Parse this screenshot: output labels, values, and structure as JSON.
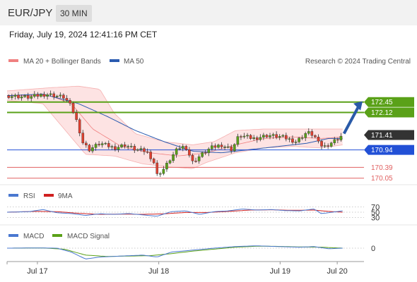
{
  "header": {
    "symbol": "EUR/JPY",
    "interval": "30 MIN",
    "datetime": "Friday, July 19, 2024 12:41:16 PM CET",
    "credit": "Research © 2024 Trading Central"
  },
  "colors": {
    "bollinger": "#f08080",
    "bollinger_fill": "#fde3e3",
    "ma50": "#2a5bb0",
    "resistance": "#5aa118",
    "support": "#2250d6",
    "pivot_red": "#e06060",
    "last_price": "#333333",
    "arrow": "#2a5aa8",
    "candle_up": "#5aa118",
    "candle_down": "#e04030",
    "rsi": "#4a78d0",
    "rsi_ma": "#d02020",
    "macd": "#4a78d0",
    "macd_signal": "#5aa118"
  },
  "chart_data": [
    {
      "type": "candlestick",
      "legend": [
        {
          "name": "MA 20 + Bollinger Bands",
          "color": "#f08080"
        },
        {
          "name": "MA 50",
          "color": "#2a5bb0"
        }
      ],
      "x_tick_labels": [
        "Jul 17",
        "Jul 18",
        "Jul 19",
        "Jul 20"
      ],
      "levels": [
        {
          "value": 172.45,
          "label": "172.45",
          "kind": "resistance"
        },
        {
          "value": 172.12,
          "label": "172.12",
          "kind": "resistance"
        },
        {
          "value": 171.41,
          "label": "171.41",
          "kind": "last"
        },
        {
          "value": 170.94,
          "label": "170.94",
          "kind": "support"
        },
        {
          "value": 170.39,
          "label": "170.39",
          "kind": "pivot"
        },
        {
          "value": 170.05,
          "label": "170.05",
          "kind": "pivot"
        }
      ],
      "price_path": [
        {
          "t": 0.0,
          "v": 172.65
        },
        {
          "t": 0.06,
          "v": 172.6
        },
        {
          "t": 0.11,
          "v": 172.7
        },
        {
          "t": 0.16,
          "v": 172.6
        },
        {
          "t": 0.18,
          "v": 172.3
        },
        {
          "t": 0.2,
          "v": 171.7
        },
        {
          "t": 0.21,
          "v": 171.2
        },
        {
          "t": 0.23,
          "v": 170.95
        },
        {
          "t": 0.26,
          "v": 171.15
        },
        {
          "t": 0.3,
          "v": 171.0
        },
        {
          "t": 0.33,
          "v": 171.1
        },
        {
          "t": 0.36,
          "v": 170.95
        },
        {
          "t": 0.39,
          "v": 170.9
        },
        {
          "t": 0.41,
          "v": 170.6
        },
        {
          "t": 0.42,
          "v": 170.15
        },
        {
          "t": 0.44,
          "v": 170.35
        },
        {
          "t": 0.46,
          "v": 170.7
        },
        {
          "t": 0.48,
          "v": 171.0
        },
        {
          "t": 0.5,
          "v": 171.05
        },
        {
          "t": 0.52,
          "v": 170.55
        },
        {
          "t": 0.54,
          "v": 170.75
        },
        {
          "t": 0.57,
          "v": 171.0
        },
        {
          "t": 0.6,
          "v": 171.1
        },
        {
          "t": 0.63,
          "v": 170.95
        },
        {
          "t": 0.65,
          "v": 171.4
        },
        {
          "t": 0.69,
          "v": 171.3
        },
        {
          "t": 0.73,
          "v": 171.4
        },
        {
          "t": 0.77,
          "v": 171.35
        },
        {
          "t": 0.81,
          "v": 171.2
        },
        {
          "t": 0.84,
          "v": 171.5
        },
        {
          "t": 0.86,
          "v": 171.4
        },
        {
          "t": 0.875,
          "v": 171.1
        },
        {
          "t": 0.89,
          "v": 171.05
        },
        {
          "t": 0.92,
          "v": 171.25
        },
        {
          "t": 0.94,
          "v": 171.41
        }
      ],
      "ma50_path": [
        {
          "t": 0.0,
          "v": 172.65
        },
        {
          "t": 0.1,
          "v": 172.7
        },
        {
          "t": 0.2,
          "v": 172.4
        },
        {
          "t": 0.28,
          "v": 172.0
        },
        {
          "t": 0.36,
          "v": 171.55
        },
        {
          "t": 0.44,
          "v": 171.2
        },
        {
          "t": 0.52,
          "v": 170.9
        },
        {
          "t": 0.6,
          "v": 170.85
        },
        {
          "t": 0.68,
          "v": 170.95
        },
        {
          "t": 0.76,
          "v": 171.05
        },
        {
          "t": 0.84,
          "v": 171.15
        },
        {
          "t": 0.9,
          "v": 171.3
        },
        {
          "t": 0.94,
          "v": 171.3
        }
      ],
      "bb_mid_path": [
        {
          "t": 0.0,
          "v": 172.65
        },
        {
          "t": 0.12,
          "v": 172.65
        },
        {
          "t": 0.18,
          "v": 172.4
        },
        {
          "t": 0.24,
          "v": 171.6
        },
        {
          "t": 0.32,
          "v": 171.05
        },
        {
          "t": 0.4,
          "v": 170.85
        },
        {
          "t": 0.48,
          "v": 170.75
        },
        {
          "t": 0.56,
          "v": 170.85
        },
        {
          "t": 0.64,
          "v": 171.1
        },
        {
          "t": 0.72,
          "v": 171.3
        },
        {
          "t": 0.8,
          "v": 171.35
        },
        {
          "t": 0.88,
          "v": 171.3
        },
        {
          "t": 0.94,
          "v": 171.35
        }
      ],
      "bb_upper_path": [
        {
          "t": 0.0,
          "v": 172.8
        },
        {
          "t": 0.12,
          "v": 172.9
        },
        {
          "t": 0.2,
          "v": 172.95
        },
        {
          "t": 0.26,
          "v": 172.85
        },
        {
          "t": 0.3,
          "v": 172.1
        },
        {
          "t": 0.36,
          "v": 171.45
        },
        {
          "t": 0.44,
          "v": 171.2
        },
        {
          "t": 0.52,
          "v": 171.1
        },
        {
          "t": 0.58,
          "v": 171.2
        },
        {
          "t": 0.64,
          "v": 171.55
        },
        {
          "t": 0.72,
          "v": 171.6
        },
        {
          "t": 0.8,
          "v": 171.6
        },
        {
          "t": 0.88,
          "v": 171.6
        },
        {
          "t": 0.94,
          "v": 171.6
        }
      ],
      "bb_lower_path": [
        {
          "t": 0.0,
          "v": 172.5
        },
        {
          "t": 0.1,
          "v": 172.4
        },
        {
          "t": 0.16,
          "v": 171.6
        },
        {
          "t": 0.22,
          "v": 170.8
        },
        {
          "t": 0.3,
          "v": 170.75
        },
        {
          "t": 0.38,
          "v": 170.5
        },
        {
          "t": 0.46,
          "v": 170.4
        },
        {
          "t": 0.52,
          "v": 170.35
        },
        {
          "t": 0.56,
          "v": 170.55
        },
        {
          "t": 0.64,
          "v": 170.85
        },
        {
          "t": 0.72,
          "v": 171.0
        },
        {
          "t": 0.8,
          "v": 171.05
        },
        {
          "t": 0.88,
          "v": 171.0
        },
        {
          "t": 0.94,
          "v": 171.1
        }
      ],
      "forecast_arrow": {
        "from_t": 0.94,
        "from_v": 171.41,
        "to_t": 1.0,
        "to_v": 172.45
      }
    },
    {
      "type": "line",
      "legend": [
        {
          "name": "RSI",
          "color": "#4a78d0"
        },
        {
          "name": "9MA",
          "color": "#d02020"
        }
      ],
      "levels": [
        "70",
        "50",
        "30"
      ],
      "rsi_path": [
        {
          "t": 0.0,
          "v": 50
        },
        {
          "t": 0.06,
          "v": 52
        },
        {
          "t": 0.1,
          "v": 60
        },
        {
          "t": 0.14,
          "v": 48
        },
        {
          "t": 0.18,
          "v": 45
        },
        {
          "t": 0.22,
          "v": 38
        },
        {
          "t": 0.26,
          "v": 44
        },
        {
          "t": 0.3,
          "v": 42
        },
        {
          "t": 0.34,
          "v": 45
        },
        {
          "t": 0.38,
          "v": 40
        },
        {
          "t": 0.42,
          "v": 35
        },
        {
          "t": 0.46,
          "v": 52
        },
        {
          "t": 0.5,
          "v": 55
        },
        {
          "t": 0.54,
          "v": 42
        },
        {
          "t": 0.58,
          "v": 52
        },
        {
          "t": 0.62,
          "v": 55
        },
        {
          "t": 0.66,
          "v": 62
        },
        {
          "t": 0.7,
          "v": 58
        },
        {
          "t": 0.74,
          "v": 60
        },
        {
          "t": 0.78,
          "v": 56
        },
        {
          "t": 0.82,
          "v": 55
        },
        {
          "t": 0.86,
          "v": 62
        },
        {
          "t": 0.88,
          "v": 45
        },
        {
          "t": 0.9,
          "v": 48
        },
        {
          "t": 0.94,
          "v": 55
        }
      ],
      "rsi_ma_path": [
        {
          "t": 0.0,
          "v": 50
        },
        {
          "t": 0.08,
          "v": 53
        },
        {
          "t": 0.14,
          "v": 52
        },
        {
          "t": 0.2,
          "v": 46
        },
        {
          "t": 0.26,
          "v": 42
        },
        {
          "t": 0.32,
          "v": 43
        },
        {
          "t": 0.38,
          "v": 42
        },
        {
          "t": 0.44,
          "v": 44
        },
        {
          "t": 0.5,
          "v": 49
        },
        {
          "t": 0.56,
          "v": 49
        },
        {
          "t": 0.62,
          "v": 53
        },
        {
          "t": 0.68,
          "v": 58
        },
        {
          "t": 0.74,
          "v": 59
        },
        {
          "t": 0.8,
          "v": 57
        },
        {
          "t": 0.86,
          "v": 58
        },
        {
          "t": 0.9,
          "v": 53
        },
        {
          "t": 0.94,
          "v": 50
        }
      ]
    },
    {
      "type": "line",
      "legend": [
        {
          "name": "MACD",
          "color": "#4a78d0"
        },
        {
          "name": "MACD Signal",
          "color": "#5aa118"
        }
      ],
      "zero_label": "0",
      "macd_path": [
        {
          "t": 0.0,
          "v": 0.0
        },
        {
          "t": 0.08,
          "v": 0.01
        },
        {
          "t": 0.14,
          "v": 0.0
        },
        {
          "t": 0.18,
          "v": -0.2
        },
        {
          "t": 0.22,
          "v": -0.55
        },
        {
          "t": 0.26,
          "v": -0.45
        },
        {
          "t": 0.32,
          "v": -0.4
        },
        {
          "t": 0.38,
          "v": -0.35
        },
        {
          "t": 0.42,
          "v": -0.45
        },
        {
          "t": 0.46,
          "v": -0.2
        },
        {
          "t": 0.52,
          "v": -0.1
        },
        {
          "t": 0.58,
          "v": 0.0
        },
        {
          "t": 0.64,
          "v": 0.08
        },
        {
          "t": 0.7,
          "v": 0.12
        },
        {
          "t": 0.76,
          "v": 0.08
        },
        {
          "t": 0.82,
          "v": 0.05
        },
        {
          "t": 0.86,
          "v": 0.08
        },
        {
          "t": 0.9,
          "v": -0.03
        },
        {
          "t": 0.94,
          "v": 0.0
        }
      ],
      "signal_path": [
        {
          "t": 0.0,
          "v": 0.0
        },
        {
          "t": 0.1,
          "v": 0.01
        },
        {
          "t": 0.16,
          "v": -0.05
        },
        {
          "t": 0.22,
          "v": -0.35
        },
        {
          "t": 0.28,
          "v": -0.42
        },
        {
          "t": 0.34,
          "v": -0.4
        },
        {
          "t": 0.4,
          "v": -0.38
        },
        {
          "t": 0.46,
          "v": -0.28
        },
        {
          "t": 0.52,
          "v": -0.15
        },
        {
          "t": 0.58,
          "v": -0.05
        },
        {
          "t": 0.64,
          "v": 0.05
        },
        {
          "t": 0.7,
          "v": 0.1
        },
        {
          "t": 0.76,
          "v": 0.09
        },
        {
          "t": 0.82,
          "v": 0.06
        },
        {
          "t": 0.88,
          "v": 0.05
        },
        {
          "t": 0.94,
          "v": 0.0
        }
      ]
    }
  ]
}
